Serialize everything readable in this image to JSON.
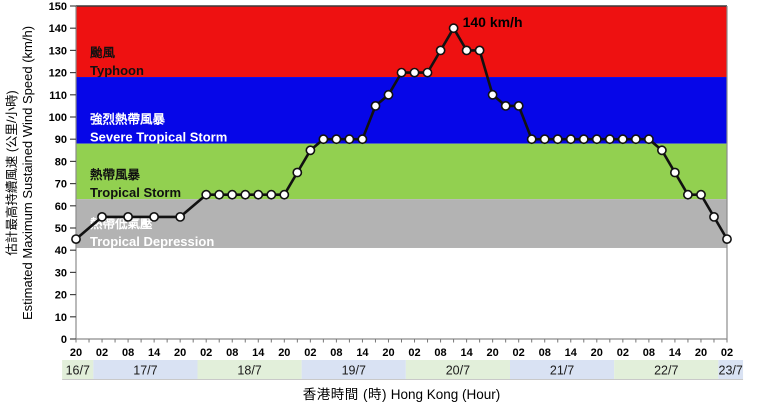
{
  "colors": {
    "typhoon_red": "#EE1111",
    "severe_tropical_storm_blue": "#0606E8",
    "tropical_storm_green": "#92D050",
    "tropical_depression_gray": "#B3B3B3",
    "date_cell_green": "#E2EFDA",
    "date_cell_blue": "#D9E2F3",
    "line_black": "#111111",
    "marker_fill": "#FFFFFF",
    "axis_gray": "#8C8C8C"
  },
  "chart_data": {
    "type": "line",
    "title": "",
    "y_axis": {
      "label_zh": "估計最高持續風速 (公里/小時)",
      "label_en": "Estimated Maximum Sustained Wind Speed (km/h)",
      "min": 0,
      "max": 150,
      "tick_step": 10
    },
    "x_axis": {
      "label_zh": "香港時間 (時)",
      "label_en": "Hong Kong (Hour)",
      "origin": "16/7 20:00",
      "hours_span": 150,
      "tick_interval_hours": 6,
      "tick_labels": [
        "20",
        "02",
        "08",
        "14",
        "20",
        "02",
        "08",
        "14",
        "20",
        "02",
        "08",
        "14",
        "20",
        "02",
        "08",
        "14",
        "20",
        "02",
        "08",
        "14",
        "20",
        "02",
        "08",
        "14",
        "20",
        "02"
      ]
    },
    "date_bands": [
      {
        "label": "16/7",
        "start_h": -3.2,
        "end_h": 4,
        "color": "#E2EFDA"
      },
      {
        "label": "17/7",
        "start_h": 4,
        "end_h": 28,
        "color": "#D9E2F3"
      },
      {
        "label": "18/7",
        "start_h": 28,
        "end_h": 52,
        "color": "#E2EFDA"
      },
      {
        "label": "19/7",
        "start_h": 52,
        "end_h": 76,
        "color": "#D9E2F3"
      },
      {
        "label": "20/7",
        "start_h": 76,
        "end_h": 100,
        "color": "#E2EFDA"
      },
      {
        "label": "21/7",
        "start_h": 100,
        "end_h": 124,
        "color": "#D9E2F3"
      },
      {
        "label": "22/7",
        "start_h": 124,
        "end_h": 148,
        "color": "#E2EFDA"
      },
      {
        "label": "23/7",
        "start_h": 148,
        "end_h": 153.7,
        "color": "#D9E2F3"
      }
    ],
    "classification_bands": [
      {
        "name_zh": "颱風",
        "name_en": "Typhoon",
        "min": 118,
        "max": 150,
        "color": "#EE1111",
        "text_color": "#111111"
      },
      {
        "name_zh": "強烈熱帶風暴",
        "name_en": "Severe Tropical Storm",
        "min": 88,
        "max": 118,
        "color": "#0606E8",
        "text_color": "#FFFFFF"
      },
      {
        "name_zh": "熱帶風暴",
        "name_en": "Tropical Storm",
        "min": 63,
        "max": 88,
        "color": "#92D050",
        "text_color": "#111111"
      },
      {
        "name_zh": "熱帶低氣壓",
        "name_en": "Tropical Depression",
        "min": 41,
        "max": 63,
        "color": "#B3B3B3",
        "text_color": "#FFFFFF"
      }
    ],
    "annotation": {
      "text": "140 km/h",
      "at_hour": 87,
      "value": 140
    },
    "series": [
      {
        "name": "estimated-max-sustained-wind-speed",
        "line_color": "#111111",
        "marker": "circle",
        "x_unit": "hours since 16/7 20:00 HKT",
        "points": [
          [
            0,
            45
          ],
          [
            6,
            55
          ],
          [
            12,
            55
          ],
          [
            18,
            55
          ],
          [
            24,
            55
          ],
          [
            30,
            65
          ],
          [
            33,
            65
          ],
          [
            36,
            65
          ],
          [
            39,
            65
          ],
          [
            42,
            65
          ],
          [
            45,
            65
          ],
          [
            48,
            65
          ],
          [
            51,
            75
          ],
          [
            54,
            85
          ],
          [
            57,
            90
          ],
          [
            60,
            90
          ],
          [
            63,
            90
          ],
          [
            66,
            90
          ],
          [
            69,
            105
          ],
          [
            72,
            110
          ],
          [
            75,
            120
          ],
          [
            78,
            120
          ],
          [
            81,
            120
          ],
          [
            84,
            130
          ],
          [
            87,
            140
          ],
          [
            90,
            130
          ],
          [
            93,
            130
          ],
          [
            96,
            110
          ],
          [
            99,
            105
          ],
          [
            102,
            105
          ],
          [
            105,
            90
          ],
          [
            108,
            90
          ],
          [
            111,
            90
          ],
          [
            114,
            90
          ],
          [
            117,
            90
          ],
          [
            120,
            90
          ],
          [
            123,
            90
          ],
          [
            126,
            90
          ],
          [
            129,
            90
          ],
          [
            132,
            90
          ],
          [
            135,
            85
          ],
          [
            138,
            75
          ],
          [
            141,
            65
          ],
          [
            144,
            65
          ],
          [
            147,
            55
          ],
          [
            150,
            45
          ]
        ]
      }
    ]
  }
}
